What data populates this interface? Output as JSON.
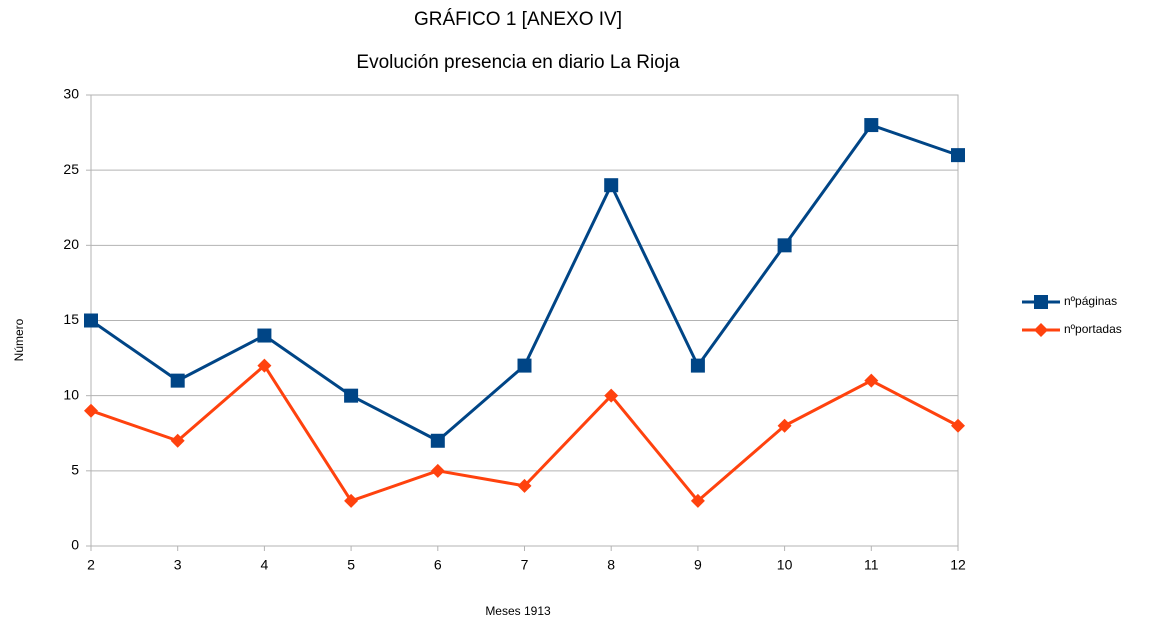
{
  "chart_data": {
    "type": "line",
    "title": "GRÁFICO 1 [ANEXO IV]",
    "subtitle": "Evolución presencia en diario La Rioja",
    "xlabel": "Meses 1913",
    "ylabel": "Número",
    "x": [
      2,
      3,
      4,
      5,
      6,
      7,
      8,
      9,
      10,
      11,
      12
    ],
    "series": [
      {
        "name": "nºpáginas",
        "color": "#004586",
        "marker": "square",
        "values": [
          15,
          11,
          14,
          10,
          7,
          12,
          24,
          12,
          20,
          28,
          26
        ]
      },
      {
        "name": "nºportadas",
        "color": "#ff420e",
        "marker": "diamond",
        "values": [
          9,
          7,
          12,
          3,
          5,
          4,
          10,
          3,
          8,
          11,
          8
        ]
      }
    ],
    "xlim": [
      2,
      12
    ],
    "xticks": [
      2,
      3,
      4,
      5,
      6,
      7,
      8,
      9,
      10,
      11,
      12
    ],
    "ylim": [
      0,
      30
    ],
    "yticks": [
      0,
      5,
      10,
      15,
      20,
      25,
      30
    ],
    "grid": true,
    "legend": "right"
  }
}
